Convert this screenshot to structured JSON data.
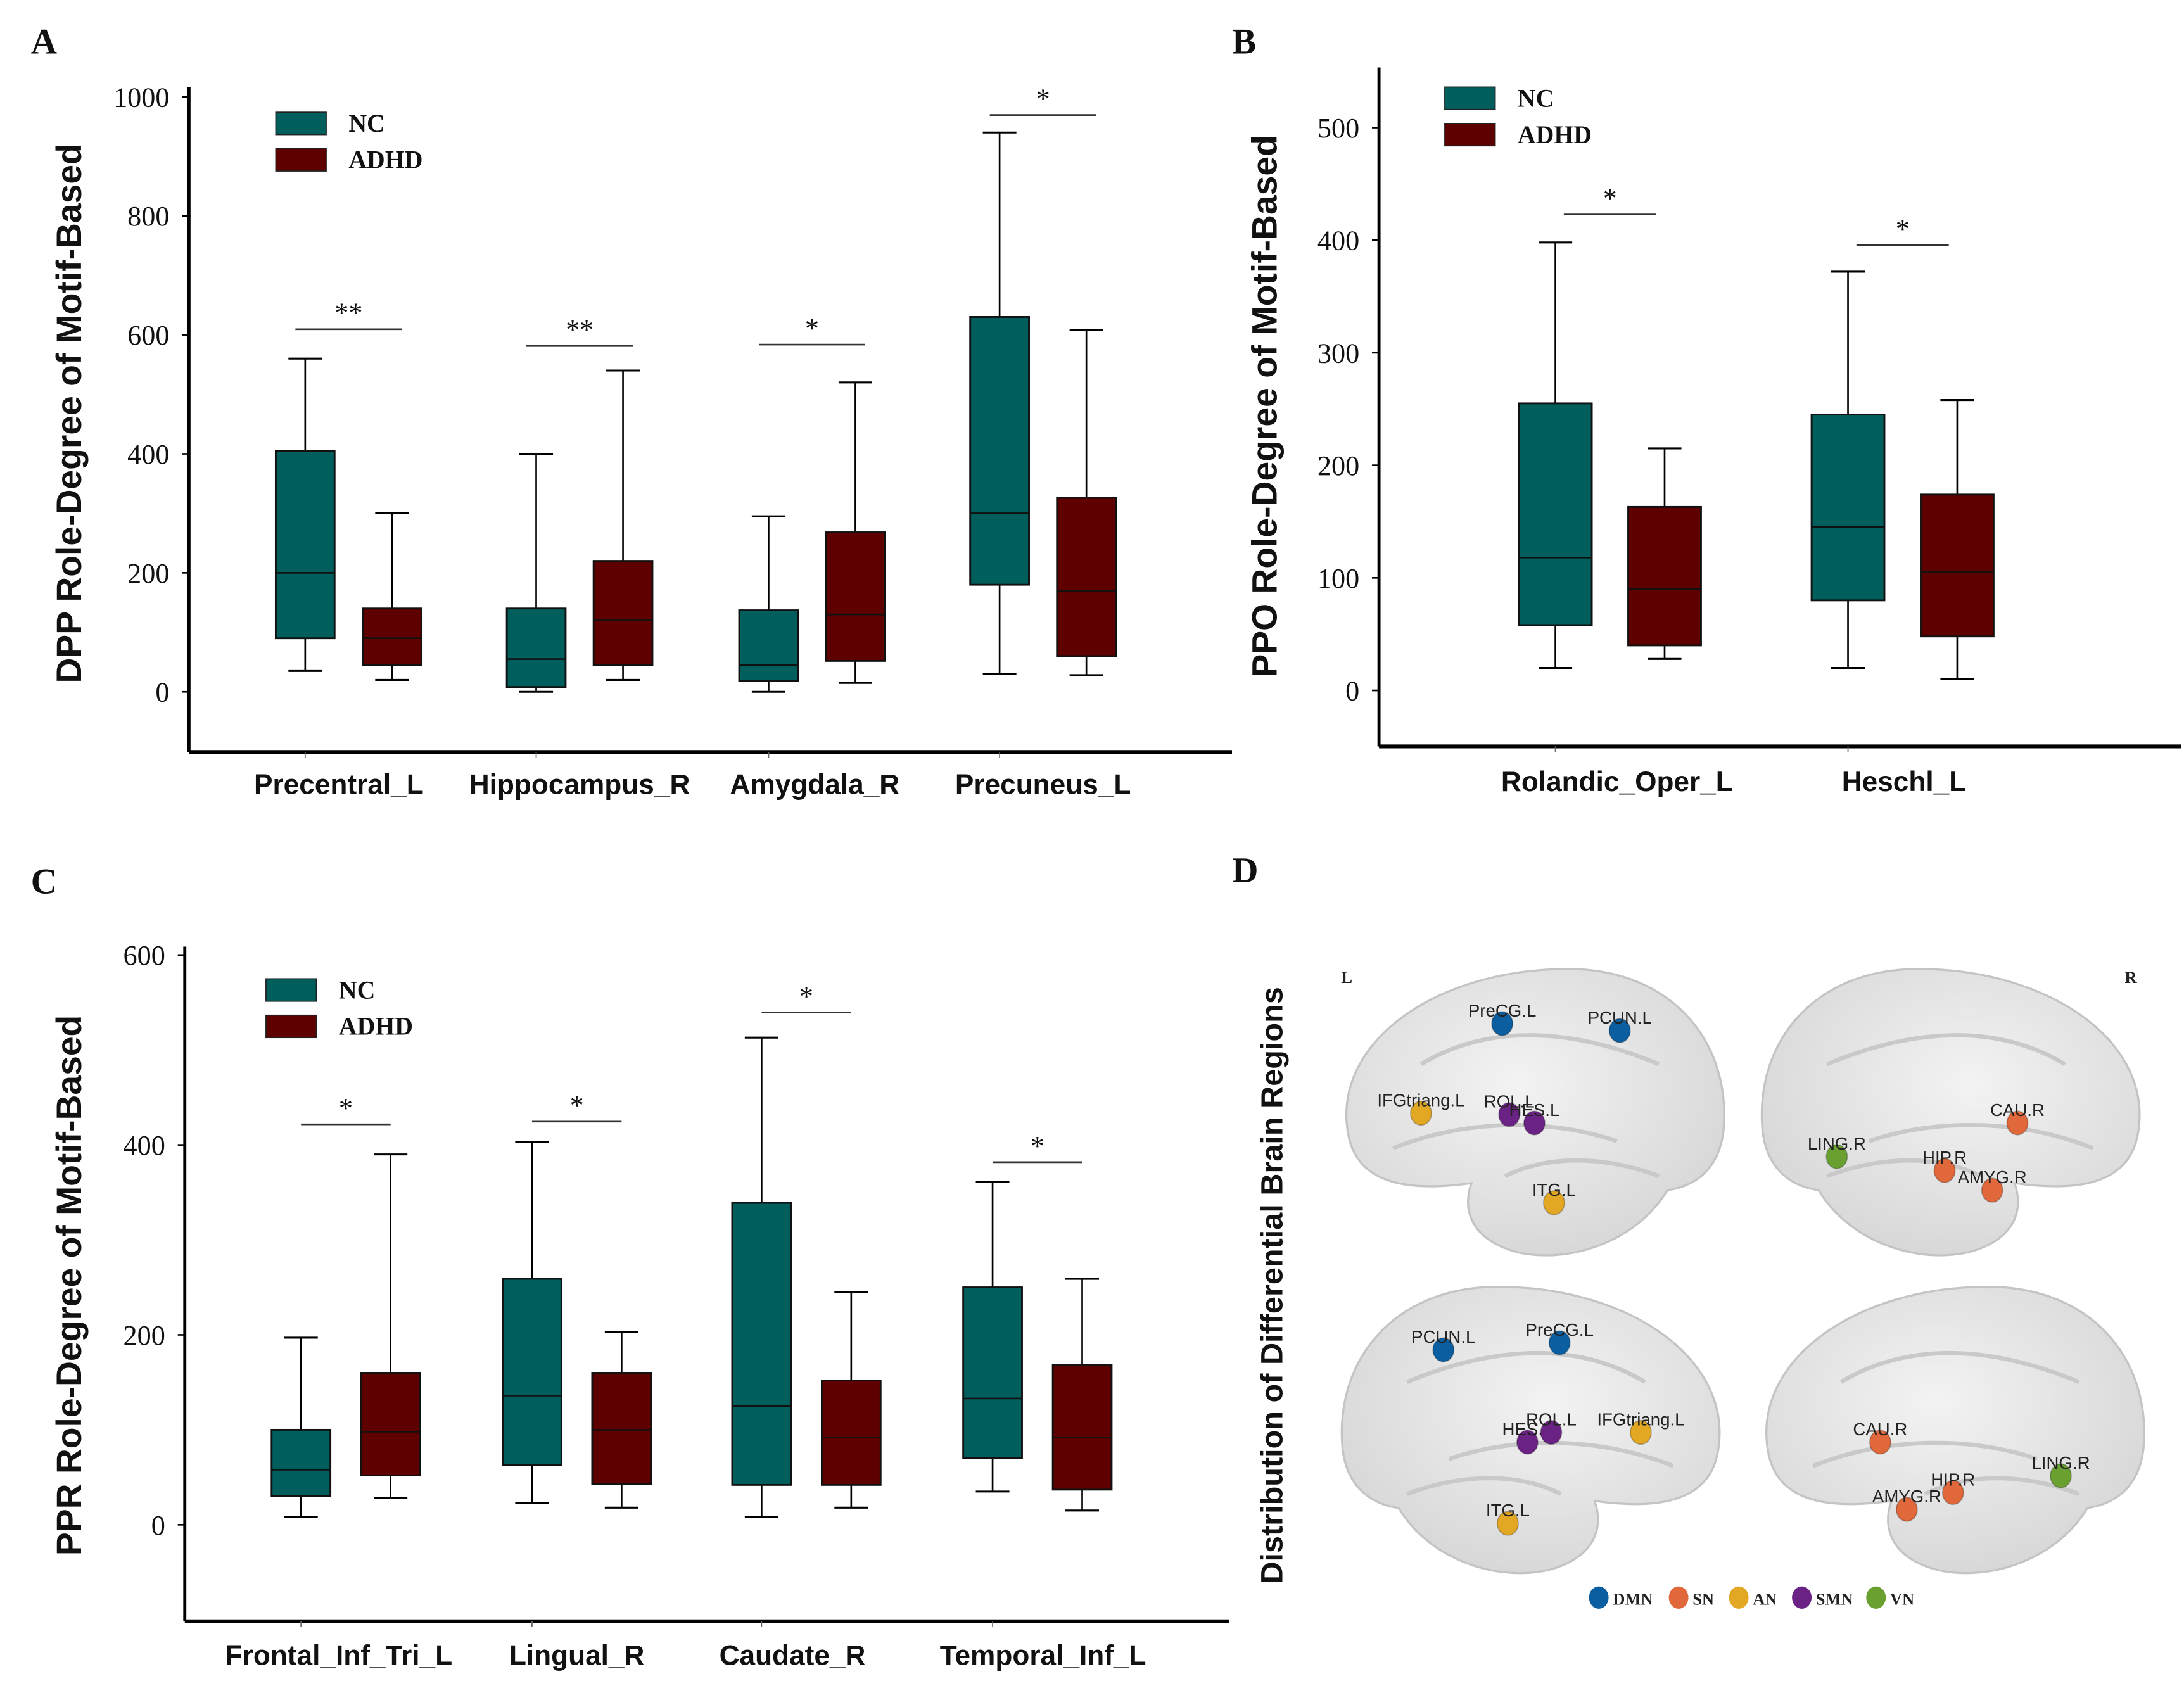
{
  "colors": {
    "NC": "#005f5c",
    "ADHD": "#5e0000"
  },
  "chart_data": [
    {
      "panel": "A",
      "type": "box",
      "ylabel": "DPP Role-Degree of Motif-Based",
      "ylim": [
        -100,
        1000
      ],
      "yticks": [
        0,
        200,
        400,
        600,
        800,
        1000
      ],
      "legend": [
        "NC",
        "ADHD"
      ],
      "legend_position": "top-left",
      "categories": [
        "Precentral_L",
        "Hippocampus_R",
        "Amygdala_R",
        "Precuneus_L"
      ],
      "significance": [
        "**",
        "**",
        "*",
        "*"
      ],
      "series": [
        {
          "name": "NC",
          "boxes": [
            {
              "min": 35,
              "q1": 90,
              "median": 200,
              "q3": 405,
              "max": 560
            },
            {
              "min": 0,
              "q1": 8,
              "median": 55,
              "q3": 140,
              "max": 400
            },
            {
              "min": 0,
              "q1": 18,
              "median": 45,
              "q3": 137,
              "max": 295
            },
            {
              "min": 30,
              "q1": 180,
              "median": 300,
              "q3": 630,
              "max": 940
            }
          ]
        },
        {
          "name": "ADHD",
          "boxes": [
            {
              "min": 20,
              "q1": 45,
              "median": 90,
              "q3": 140,
              "max": 300
            },
            {
              "min": 20,
              "q1": 45,
              "median": 120,
              "q3": 220,
              "max": 540
            },
            {
              "min": 15,
              "q1": 52,
              "median": 130,
              "q3": 268,
              "max": 520
            },
            {
              "min": 28,
              "q1": 60,
              "median": 170,
              "q3": 326,
              "max": 608
            }
          ]
        }
      ]
    },
    {
      "panel": "B",
      "type": "box",
      "ylabel": "PPO Role-Degree of Motif-Based",
      "ylim": [
        -50,
        550
      ],
      "yticks": [
        0,
        100,
        200,
        300,
        400,
        500
      ],
      "legend": [
        "NC",
        "ADHD"
      ],
      "legend_position": "top-left",
      "categories": [
        "Rolandic_Oper_L",
        "Heschl_L"
      ],
      "significance": [
        "*",
        "*"
      ],
      "series": [
        {
          "name": "NC",
          "boxes": [
            {
              "min": 20,
              "q1": 58,
              "median": 118,
              "q3": 255,
              "max": 398
            },
            {
              "min": 20,
              "q1": 80,
              "median": 145,
              "q3": 245,
              "max": 372
            }
          ]
        },
        {
          "name": "ADHD",
          "boxes": [
            {
              "min": 28,
              "q1": 40,
              "median": 90,
              "q3": 163,
              "max": 215
            },
            {
              "min": 10,
              "q1": 48,
              "median": 105,
              "q3": 174,
              "max": 258
            }
          ]
        }
      ]
    },
    {
      "panel": "C",
      "type": "box",
      "ylabel": "PPR Role-Degree of Motif-Based",
      "ylim": [
        -100,
        600
      ],
      "yticks": [
        0,
        200,
        400,
        600
      ],
      "legend": [
        "NC",
        "ADHD"
      ],
      "legend_position": "top-left",
      "categories": [
        "Frontal_Inf_Tri_L",
        "Lingual_R",
        "Caudate_R",
        "Temporal_Inf_L"
      ],
      "significance": [
        "*",
        "*",
        "*",
        "*"
      ],
      "series": [
        {
          "name": "NC",
          "boxes": [
            {
              "min": 8,
              "q1": 30,
              "median": 58,
              "q3": 100,
              "max": 197
            },
            {
              "min": 23,
              "q1": 63,
              "median": 136,
              "q3": 259,
              "max": 403
            },
            {
              "min": 8,
              "q1": 42,
              "median": 125,
              "q3": 339,
              "max": 513
            },
            {
              "min": 35,
              "q1": 70,
              "median": 133,
              "q3": 250,
              "max": 361
            }
          ]
        },
        {
          "name": "ADHD",
          "boxes": [
            {
              "min": 28,
              "q1": 52,
              "median": 98,
              "q3": 160,
              "max": 390
            },
            {
              "min": 18,
              "q1": 43,
              "median": 100,
              "q3": 160,
              "max": 203
            },
            {
              "min": 18,
              "q1": 42,
              "median": 92,
              "q3": 152,
              "max": 245
            },
            {
              "min": 15,
              "q1": 37,
              "median": 92,
              "q3": 168,
              "max": 259
            }
          ]
        }
      ]
    }
  ],
  "panel_d": {
    "letter": "D",
    "ylabel": "Distribution of Differential Brain Regions",
    "left_marker": "L",
    "right_marker": "R",
    "networks": [
      {
        "name": "DMN",
        "color": "#0b5fa0"
      },
      {
        "name": "SN",
        "color": "#e0683a"
      },
      {
        "name": "AN",
        "color": "#e3a823"
      },
      {
        "name": "SMN",
        "color": "#6b2285"
      },
      {
        "name": "VN",
        "color": "#6aa030"
      }
    ],
    "views": [
      {
        "regions": [
          {
            "label": "PreCG.L",
            "network": "DMN"
          },
          {
            "label": "PCUN.L",
            "network": "DMN"
          },
          {
            "label": "IFGtriang.L",
            "network": "AN"
          },
          {
            "label": "ROL.L",
            "network": "SMN"
          },
          {
            "label": "HES.L",
            "network": "SMN"
          },
          {
            "label": "ITG.L",
            "network": "AN"
          }
        ]
      },
      {
        "regions": [
          {
            "label": "LING.R",
            "network": "VN"
          },
          {
            "label": "CAU.R",
            "network": "SN"
          },
          {
            "label": "HIP.R",
            "network": "SN"
          },
          {
            "label": "AMYG.R",
            "network": "SN"
          }
        ]
      },
      {
        "regions": [
          {
            "label": "PCUN.L",
            "network": "DMN"
          },
          {
            "label": "PreCG.L",
            "network": "DMN"
          },
          {
            "label": "HES.L",
            "network": "SMN"
          },
          {
            "label": "ROL.L",
            "network": "SMN"
          },
          {
            "label": "IFGtriang.L",
            "network": "AN"
          },
          {
            "label": "ITG.L",
            "network": "AN"
          }
        ]
      },
      {
        "regions": [
          {
            "label": "CAU.R",
            "network": "SN"
          },
          {
            "label": "LING.R",
            "network": "VN"
          },
          {
            "label": "HIP.R",
            "network": "SN"
          },
          {
            "label": "AMYG.R",
            "network": "SN"
          }
        ]
      }
    ]
  }
}
